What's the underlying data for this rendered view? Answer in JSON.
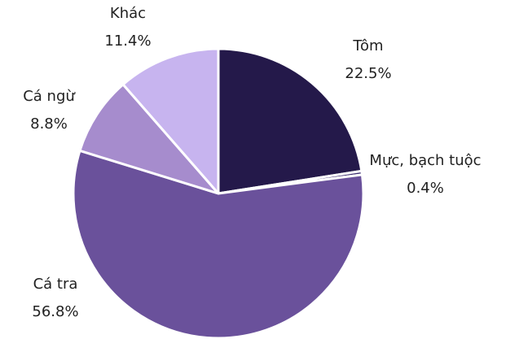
{
  "chart_data": {
    "type": "pie",
    "categories": [
      "Tôm",
      "Mực, bạch tuộc",
      "Cá tra",
      "Cá ngừ",
      "Khác"
    ],
    "values": [
      22.5,
      0.4,
      56.8,
      8.8,
      11.4
    ],
    "value_labels": [
      "22.5%",
      "0.4%",
      "56.8%",
      "8.8%",
      "11.4%"
    ],
    "colors": [
      "#24194a",
      "#3a2a6e",
      "#6a519b",
      "#a68ccd",
      "#c7b4ef"
    ]
  }
}
